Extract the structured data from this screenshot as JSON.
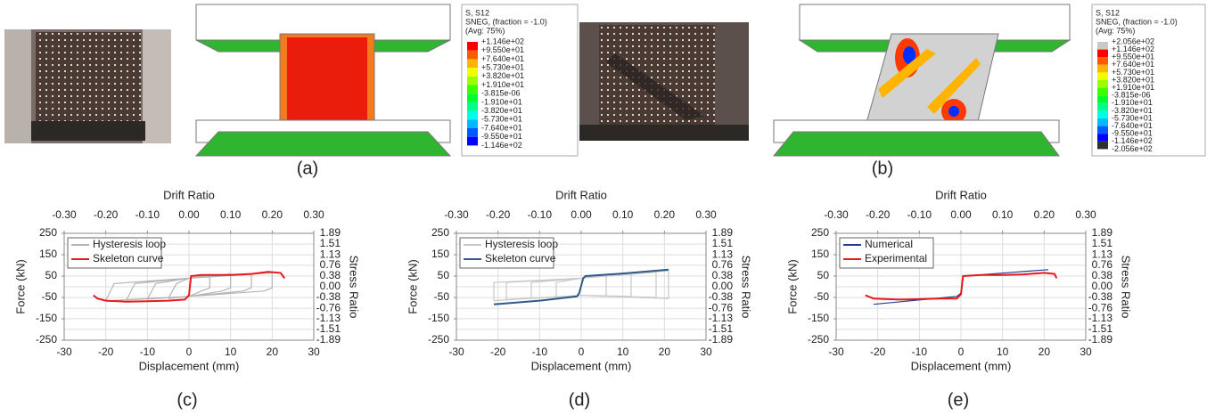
{
  "figure": {
    "panel_labels": [
      "(a)",
      "(b)",
      "(c)",
      "(d)",
      "(e)"
    ],
    "contour_legends": [
      {
        "lines": [
          "S, S12",
          "SNEG, (fraction = -1.0)",
          "(Avg: 75%)"
        ],
        "levels": [
          "+1.146e+02",
          "+9.550e+01",
          "+7.640e+01",
          "+5.730e+01",
          "+3.820e+01",
          "+1.910e+01",
          "-3.815e-06",
          "-1.910e+01",
          "-3.820e+01",
          "-5.730e+01",
          "-7.640e+01",
          "-9.550e+01",
          "-1.146e+02"
        ],
        "colors": [
          "#ff0000",
          "#ff5a00",
          "#ffb400",
          "#f0ff00",
          "#9aff00",
          "#3cff00",
          "#00ff2e",
          "#00ff8c",
          "#00ffe6",
          "#00b9ff",
          "#005aff",
          "#0000ff"
        ]
      },
      {
        "lines": [
          "S, S12",
          "SNEG, (fraction = -1.0)",
          "(Avg: 75%)"
        ],
        "levels": [
          "+2.056e+02",
          "+1.146e+02",
          "+9.550e+01",
          "+7.640e+01",
          "+5.730e+01",
          "+3.820e+01",
          "+1.910e+01",
          "-3.815e-06",
          "-1.910e+01",
          "-3.820e+01",
          "-5.730e+01",
          "-7.640e+01",
          "-9.550e+01",
          "-1.146e+02",
          "-2.056e+02"
        ],
        "colors": [
          "#c8c8c8",
          "#ff0000",
          "#ff5a00",
          "#ffb400",
          "#f0ff00",
          "#9aff00",
          "#3cff00",
          "#00ff2e",
          "#00ff8c",
          "#00ffe6",
          "#00b9ff",
          "#005aff",
          "#0000ff",
          "#303030"
        ]
      }
    ]
  },
  "chart_data": [
    {
      "type": "line",
      "x_label": "Displacement (mm)",
      "y_label": "Force (kN)",
      "x2_label": "Drift Ratio",
      "y2_label": "Stress Ratio",
      "xlim": [
        -30,
        30
      ],
      "xticks": [
        -30,
        -20,
        -10,
        0,
        10,
        20,
        30
      ],
      "x2lim": [
        -0.3,
        0.3
      ],
      "x2ticks": [
        {
          "value": -0.3,
          "label": "-0.30"
        },
        {
          "value": -0.2,
          "label": "-0.20"
        },
        {
          "value": -0.1,
          "label": "-0.10"
        },
        {
          "value": 0,
          "label": "0.00"
        },
        {
          "value": 0.1,
          "label": "0.10"
        },
        {
          "value": 0.2,
          "label": "0.20"
        },
        {
          "value": 0.3,
          "label": "0.30"
        }
      ],
      "ylim": [
        -250,
        250
      ],
      "yticks": [
        250,
        150,
        50,
        -50,
        -150,
        -250
      ],
      "y2lim": [
        -1.89,
        1.89
      ],
      "y2ticks": [
        1.89,
        1.51,
        1.13,
        0.76,
        0.38,
        {
          "value": 0,
          "label": "0.00"
        },
        -0.38,
        -0.76,
        -1.13,
        -1.51,
        -1.89
      ],
      "grid": true,
      "series": [
        {
          "name": "Hysteresis loop",
          "color": "#b4b4b4",
          "x": [
            -5,
            -3,
            0,
            5,
            5,
            3,
            0,
            -5,
            null,
            -10,
            -8,
            0,
            10,
            10,
            8,
            0,
            -10,
            null,
            -15,
            -13,
            0,
            15,
            15,
            13,
            0,
            -15,
            null,
            -20,
            -18,
            0,
            20,
            20,
            18,
            0,
            -20
          ],
          "values": [
            -55,
            15,
            40,
            57,
            -5,
            -20,
            -45,
            -55,
            null,
            -58,
            15,
            40,
            60,
            -5,
            -20,
            -45,
            -58,
            null,
            -62,
            15,
            40,
            62,
            -5,
            -20,
            -45,
            -62,
            null,
            -66,
            15,
            40,
            65,
            -5,
            -20,
            -45,
            -66
          ]
        },
        {
          "name": "Skeleton curve",
          "color": "#e8191c",
          "x": [
            -23,
            -22,
            -20,
            -15,
            -10,
            -5,
            -1,
            0,
            0.5,
            3,
            10,
            15,
            19,
            22,
            23
          ],
          "values": [
            -40,
            -55,
            -65,
            -70,
            -68,
            -65,
            -60,
            -40,
            50,
            55,
            55,
            60,
            70,
            65,
            40
          ]
        }
      ],
      "caption": "(c)"
    },
    {
      "type": "line",
      "x_label": "Displacement (mm)",
      "y_label": "Force (kN)",
      "x2_label": "Drift Ratio",
      "y2_label": "Stress Ratio",
      "xlim": [
        -30,
        30
      ],
      "xticks": [
        -30,
        -20,
        -10,
        0,
        10,
        20,
        30
      ],
      "x2lim": [
        -0.3,
        0.3
      ],
      "x2ticks": [
        {
          "value": -0.3,
          "label": "-0.30"
        },
        {
          "value": -0.2,
          "label": "-0.20"
        },
        {
          "value": -0.1,
          "label": "-0.10"
        },
        {
          "value": 0,
          "label": "0.00"
        },
        {
          "value": 0.1,
          "label": "0.10"
        },
        {
          "value": 0.2,
          "label": "0.20"
        },
        {
          "value": 0.3,
          "label": "0.30"
        }
      ],
      "ylim": [
        -250,
        250
      ],
      "yticks": [
        250,
        150,
        50,
        -50,
        -150,
        -250
      ],
      "y2lim": [
        -1.89,
        1.89
      ],
      "y2ticks": [
        1.89,
        1.51,
        1.13,
        0.76,
        0.38,
        {
          "value": 0,
          "label": "0.00"
        },
        -0.38,
        -0.76,
        -1.13,
        -1.51,
        -1.89
      ],
      "grid": true,
      "series": [
        {
          "name": "Hysteresis loop",
          "color": "#c8c8c8",
          "x": [
            -6,
            -6,
            0,
            6,
            6,
            0,
            -6,
            null,
            -12,
            -12,
            0,
            12,
            12,
            0,
            -12,
            null,
            -18,
            -18,
            0,
            18,
            18,
            0,
            -18,
            null,
            -21,
            -21,
            0,
            21,
            21,
            0,
            -21
          ],
          "values": [
            -50,
            20,
            40,
            55,
            -45,
            -40,
            -50,
            null,
            -55,
            20,
            40,
            60,
            -45,
            -40,
            -55,
            null,
            -60,
            20,
            40,
            68,
            -50,
            -40,
            -60,
            null,
            -65,
            20,
            40,
            75,
            -55,
            -40,
            -65
          ]
        },
        {
          "name": "Skeleton curve",
          "color": "#2e5a87",
          "x": [
            -21,
            -10,
            -1,
            -0.5,
            0.5,
            1,
            10,
            21
          ],
          "values": [
            -82,
            -65,
            -45,
            -30,
            40,
            50,
            62,
            80
          ]
        }
      ],
      "caption": "(d)"
    },
    {
      "type": "line",
      "x_label": "Displacement (mm)",
      "y_label": "Force (kN)",
      "x2_label": "Drift Ratio",
      "y2_label": "Stress Ratio",
      "xlim": [
        -30,
        30
      ],
      "xticks": [
        -30,
        -20,
        -10,
        0,
        10,
        20,
        30
      ],
      "x2lim": [
        -0.3,
        0.3
      ],
      "x2ticks": [
        {
          "value": -0.3,
          "label": "-0.30"
        },
        {
          "value": -0.2,
          "label": "-0.20"
        },
        {
          "value": -0.1,
          "label": "-0.10"
        },
        {
          "value": 0,
          "label": "0.00"
        },
        {
          "value": 0.1,
          "label": "0.10"
        },
        {
          "value": 0.2,
          "label": "0.20"
        },
        {
          "value": 0.3,
          "label": "0.30"
        }
      ],
      "ylim": [
        -250,
        250
      ],
      "yticks": [
        250,
        150,
        50,
        -50,
        -150,
        -250
      ],
      "y2lim": [
        -1.89,
        1.89
      ],
      "y2ticks": [
        1.89,
        1.51,
        1.13,
        0.76,
        0.38,
        {
          "value": 0,
          "label": "0.00"
        },
        -0.38,
        -0.76,
        -1.13,
        -1.51,
        -1.89
      ],
      "grid": true,
      "series": [
        {
          "name": "Numerical",
          "color": "#1f3f8f",
          "x": [
            -21,
            -1,
            0,
            0.5,
            21
          ],
          "values": [
            -82,
            -45,
            -30,
            50,
            80
          ]
        },
        {
          "name": "Experimental",
          "color": "#e8191c",
          "x": [
            -23,
            -21,
            -15,
            -10,
            -5,
            -1,
            0,
            0.5,
            5,
            10,
            15,
            20,
            22.5,
            23
          ],
          "values": [
            -40,
            -55,
            -60,
            -58,
            -55,
            -55,
            -35,
            50,
            55,
            55,
            58,
            65,
            60,
            40
          ]
        }
      ],
      "caption": "(e)"
    }
  ]
}
